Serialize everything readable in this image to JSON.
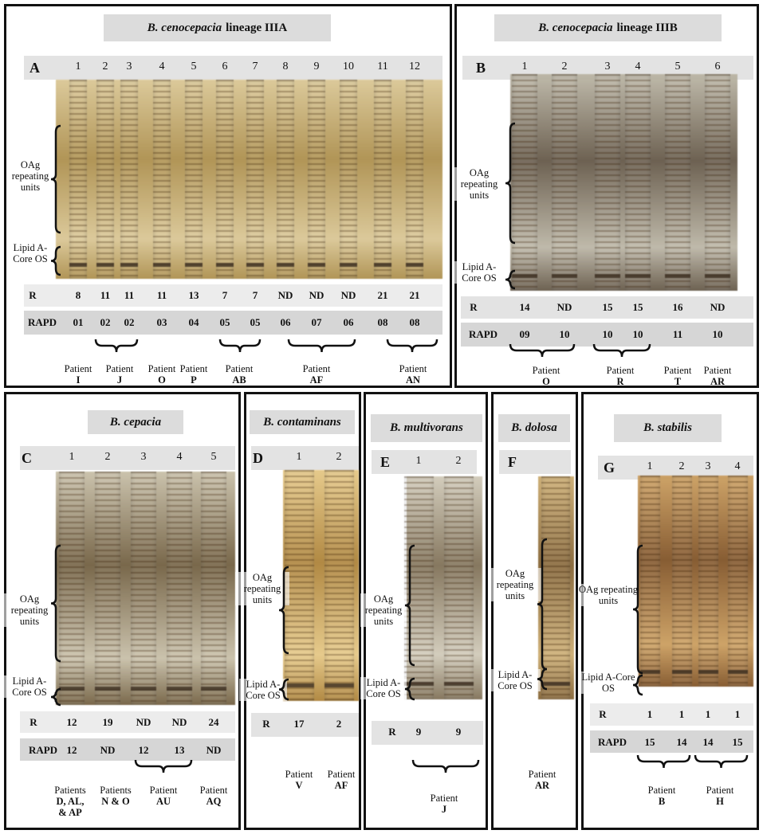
{
  "panels": [
    {
      "letter": "A",
      "title": {
        "species": "B. cenocepacia",
        "suffix": "lineage IIIA"
      },
      "lanes": [
        1,
        2,
        3,
        4,
        5,
        6,
        7,
        8,
        9,
        10,
        11,
        12
      ],
      "oag_label": "OAg repeating units",
      "lipid_label": "Lipid A-Core OS",
      "r": {
        "label": "R",
        "values": [
          8,
          11,
          11,
          11,
          13,
          7,
          7,
          "ND",
          "ND",
          "ND",
          21,
          21
        ]
      },
      "rapd": {
        "label": "RAPD",
        "values": [
          "01",
          "02",
          "02",
          "03",
          "04",
          "05",
          "05",
          "06",
          "07",
          "06",
          "08",
          "08"
        ]
      },
      "patients": [
        {
          "label": "Patient",
          "id": "I"
        },
        {
          "label": "Patient",
          "id": "J"
        },
        {
          "label": "Patient",
          "id": "O"
        },
        {
          "label": "Patient",
          "id": "P"
        },
        {
          "label": "Patient",
          "id": "AB"
        },
        {
          "label": "Patient",
          "id": "AF"
        },
        {
          "label": "Patient",
          "id": "AN"
        }
      ]
    },
    {
      "letter": "B",
      "title": {
        "species": "B. cenocepacia",
        "suffix": "lineage IIIB"
      },
      "lanes": [
        1,
        2,
        3,
        4,
        5,
        6
      ],
      "oag_label": "OAg repeating units",
      "lipid_label": "Lipid A-Core OS",
      "r": {
        "label": "R",
        "values": [
          14,
          "ND",
          15,
          15,
          16,
          "ND"
        ]
      },
      "rapd": {
        "label": "RAPD",
        "values": [
          "09",
          "10",
          "10",
          "10",
          "11",
          "10"
        ]
      },
      "patients": [
        {
          "label": "Patient",
          "id": "O"
        },
        {
          "label": "Patient",
          "id": "R"
        },
        {
          "label": "Patient",
          "id": "T"
        },
        {
          "label": "Patient",
          "id": "AR"
        }
      ]
    },
    {
      "letter": "C",
      "title": {
        "species": "B. cepacia",
        "suffix": ""
      },
      "lanes": [
        1,
        2,
        3,
        4,
        5
      ],
      "oag_label": "OAg repeating units",
      "lipid_label": "Lipid A-Core OS",
      "r": {
        "label": "R",
        "values": [
          12,
          19,
          "ND",
          "ND",
          24
        ]
      },
      "rapd": {
        "label": "RAPD",
        "values": [
          "12",
          "ND",
          "12",
          "13",
          "ND"
        ]
      },
      "patients": [
        {
          "label": "Patients",
          "id": "D, AL, & AP"
        },
        {
          "label": "Patients",
          "id": "N & O"
        },
        {
          "label": "Patient",
          "id": "AU"
        },
        {
          "label": "Patient",
          "id": "AQ"
        }
      ]
    },
    {
      "letter": "D",
      "title": {
        "species": "B. contaminans",
        "suffix": ""
      },
      "lanes": [
        1,
        2
      ],
      "oag_label": "OAg repeating units",
      "lipid_label": "Lipid A-Core OS",
      "r": {
        "label": "R",
        "values": [
          17,
          2
        ]
      },
      "patients": [
        {
          "label": "Patient",
          "id": "V"
        },
        {
          "label": "Patient",
          "id": "AF"
        }
      ]
    },
    {
      "letter": "E",
      "title": {
        "species": "B. multivorans",
        "suffix": ""
      },
      "lanes": [
        1,
        2
      ],
      "oag_label": "OAg repeating units",
      "lipid_label": "Lipid A-Core OS",
      "r": {
        "label": "R",
        "values": [
          9,
          9
        ]
      },
      "patients": [
        {
          "label": "Patient",
          "id": "J"
        }
      ]
    },
    {
      "letter": "F",
      "title": {
        "species": "B. dolosa",
        "suffix": ""
      },
      "lanes": [],
      "oag_label": "OAg repeating units",
      "lipid_label": "Lipid A-Core OS",
      "patients": [
        {
          "label": "Patient",
          "id": "AR"
        }
      ]
    },
    {
      "letter": "G",
      "title": {
        "species": "B. stabilis",
        "suffix": ""
      },
      "lanes": [
        1,
        2,
        3,
        4
      ],
      "oag_label": "OAg repeating units",
      "lipid_label": "Lipid A-Core OS",
      "r": {
        "label": "R",
        "values": [
          1,
          1,
          1,
          1
        ]
      },
      "rapd": {
        "label": "RAPD",
        "values": [
          "15",
          "14",
          "14",
          "15"
        ]
      },
      "patients": [
        {
          "label": "Patient",
          "id": "B"
        },
        {
          "label": "Patient",
          "id": "H"
        }
      ]
    }
  ]
}
